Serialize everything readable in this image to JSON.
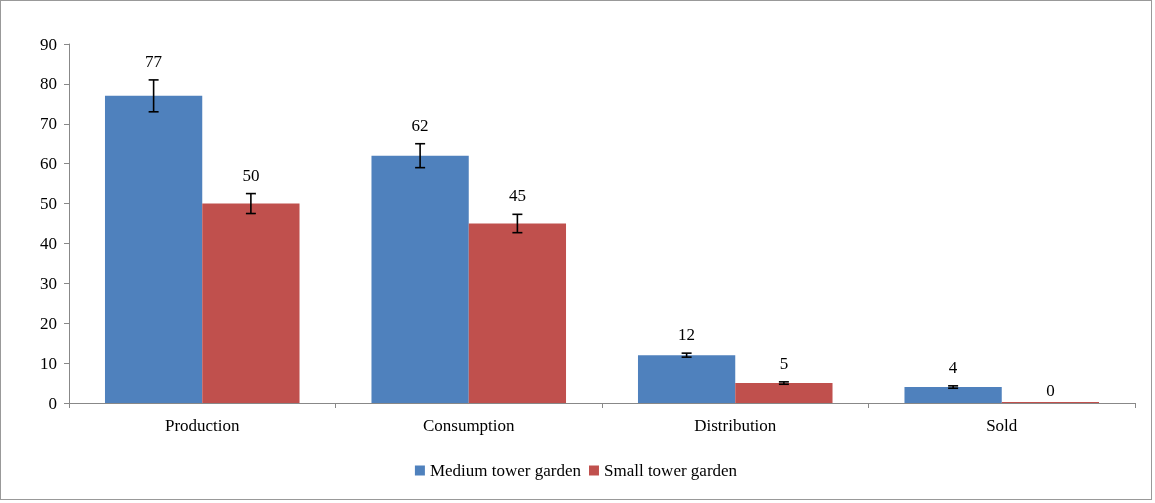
{
  "chart_data": {
    "type": "bar",
    "categories": [
      "Production",
      "Consumption",
      "Distribution",
      "Sold"
    ],
    "series": [
      {
        "name": "Medium tower garden",
        "color": "#4f81bd",
        "values": [
          77,
          62,
          12,
          4
        ],
        "errors": [
          4,
          3,
          0.5,
          0.3
        ]
      },
      {
        "name": "Small tower garden",
        "color": "#c0504d",
        "values": [
          50,
          45,
          5,
          0
        ],
        "errors": [
          2.5,
          2.3,
          0.3,
          null
        ]
      }
    ],
    "ylim": [
      0,
      90
    ],
    "yticks": [
      0,
      10,
      20,
      30,
      40,
      50,
      60,
      70,
      80,
      90
    ],
    "grid": false,
    "legend": "bottom",
    "data_labels": true
  }
}
